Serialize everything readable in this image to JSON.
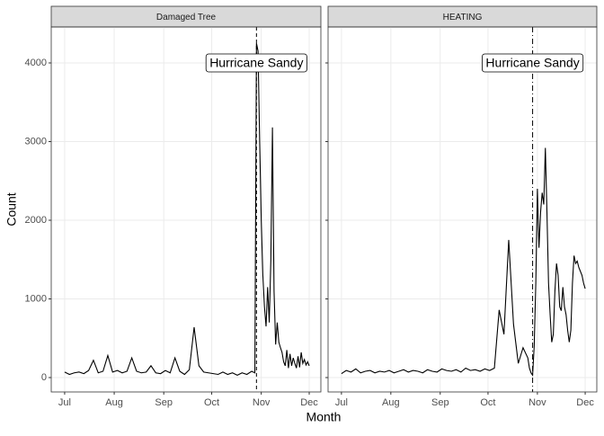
{
  "chart_data": [
    {
      "type": "line",
      "title": "Damaged Tree",
      "color": "#000000",
      "x": [
        0,
        3,
        6,
        9,
        12,
        15,
        18,
        21,
        24,
        27,
        30,
        33,
        36,
        39,
        42,
        45,
        48,
        51,
        54,
        57,
        60,
        63,
        66,
        69,
        72,
        75,
        78,
        81,
        84,
        87,
        90,
        93,
        96,
        99,
        102,
        105,
        108,
        111,
        114,
        117,
        118,
        119,
        120,
        121,
        122,
        123,
        124,
        125,
        126,
        127,
        128,
        129,
        130,
        131,
        132,
        133,
        134,
        135,
        136,
        137,
        138,
        139,
        140,
        141,
        142,
        143,
        144,
        145,
        146,
        147,
        148,
        149,
        150,
        151,
        152,
        153
      ],
      "values": [
        70,
        40,
        60,
        70,
        50,
        90,
        220,
        60,
        80,
        280,
        70,
        90,
        60,
        80,
        250,
        80,
        60,
        70,
        150,
        60,
        50,
        90,
        60,
        250,
        80,
        40,
        100,
        640,
        150,
        70,
        60,
        50,
        40,
        70,
        40,
        60,
        30,
        60,
        40,
        80,
        70,
        60,
        4250,
        4150,
        3000,
        2000,
        1300,
        900,
        650,
        1150,
        700,
        1500,
        3180,
        1100,
        420,
        700,
        450,
        380,
        320,
        200,
        150,
        350,
        120,
        300,
        150,
        250,
        180,
        120,
        270,
        130,
        320,
        180,
        230,
        160,
        200,
        150
      ],
      "xlim": [
        -8.4,
        160.3
      ],
      "ylim": [
        -183,
        4457
      ],
      "xticks": [
        {
          "value": 0,
          "label": "Jul"
        },
        {
          "value": 31,
          "label": "Aug"
        },
        {
          "value": 62,
          "label": "Sep"
        },
        {
          "value": 92,
          "label": "Oct"
        },
        {
          "value": 123,
          "label": "Nov"
        },
        {
          "value": 153,
          "label": "Dec"
        }
      ],
      "yticks": [
        0,
        1000,
        2000,
        3000,
        4000
      ],
      "grid": true,
      "vline": {
        "x": 120,
        "linetype": "dashed"
      },
      "annotation": {
        "text": "Hurricane Sandy",
        "x": 120,
        "y": 4000
      }
    },
    {
      "type": "line",
      "title": "HEATING",
      "color": "#000000",
      "x": [
        0,
        3,
        6,
        9,
        12,
        15,
        18,
        21,
        24,
        27,
        30,
        33,
        36,
        39,
        42,
        45,
        48,
        51,
        54,
        57,
        60,
        63,
        66,
        69,
        72,
        75,
        78,
        81,
        84,
        87,
        90,
        93,
        96,
        99,
        102,
        105,
        108,
        111,
        114,
        117,
        118,
        119,
        120,
        121,
        122,
        123,
        124,
        125,
        126,
        127,
        128,
        129,
        130,
        131,
        132,
        133,
        134,
        135,
        136,
        137,
        138,
        139,
        140,
        141,
        142,
        143,
        144,
        145,
        146,
        147,
        148,
        149,
        150,
        151,
        152,
        153
      ],
      "values": [
        50,
        90,
        70,
        110,
        60,
        80,
        90,
        60,
        80,
        70,
        90,
        60,
        80,
        100,
        70,
        90,
        80,
        60,
        100,
        80,
        70,
        110,
        90,
        80,
        100,
        70,
        120,
        90,
        100,
        80,
        110,
        90,
        120,
        860,
        550,
        1750,
        680,
        180,
        380,
        250,
        120,
        60,
        30,
        400,
        1200,
        2400,
        1650,
        2100,
        2350,
        2200,
        2920,
        2100,
        1200,
        800,
        450,
        550,
        1100,
        1450,
        1300,
        900,
        850,
        1150,
        900,
        800,
        600,
        450,
        600,
        1200,
        1550,
        1450,
        1480,
        1400,
        1350,
        1300,
        1200,
        1130
      ],
      "xlim": [
        -8.4,
        160.3
      ],
      "ylim": [
        -183,
        4457
      ],
      "xticks": [
        {
          "value": 0,
          "label": "Jul"
        },
        {
          "value": 31,
          "label": "Aug"
        },
        {
          "value": 62,
          "label": "Sep"
        },
        {
          "value": 92,
          "label": "Oct"
        },
        {
          "value": 123,
          "label": "Nov"
        },
        {
          "value": 153,
          "label": "Dec"
        }
      ],
      "yticks": [
        0,
        1000,
        2000,
        3000,
        4000
      ],
      "grid": true,
      "vline": {
        "x": 120,
        "linetype": "dashdot"
      },
      "annotation": {
        "text": "Hurricane Sandy",
        "x": 120,
        "y": 4000
      }
    }
  ],
  "xlabel": "Month",
  "ylabel": "Count"
}
